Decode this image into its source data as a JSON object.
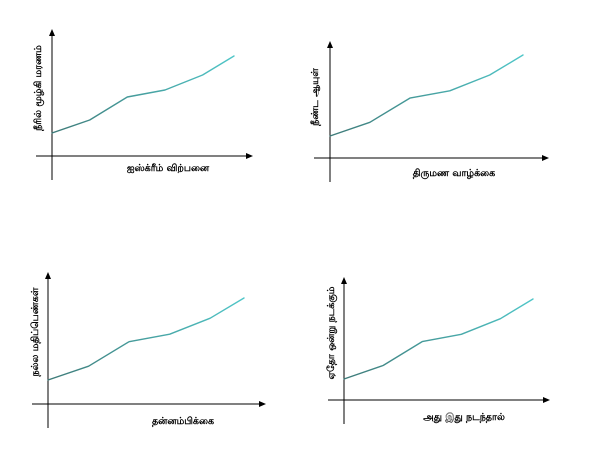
{
  "palette": {
    "axis": "#000000",
    "line_start": "#3e7a78",
    "line_end": "#4fc6c8"
  },
  "icons": {
    "arrowheads": "arrow-icon"
  },
  "chart_data": [
    {
      "type": "line",
      "title": "",
      "xlabel": "ஐஸ்க்ரீம் விற்பனை",
      "ylabel": "நீரில் மூழ்கி மரணம்",
      "grid": false,
      "legend": "none",
      "xlim": [
        0,
        6
      ],
      "ylim": [
        0,
        10
      ],
      "x": [
        0,
        1.2,
        2.4,
        3.6,
        4.8,
        5.8
      ],
      "y": [
        2.3,
        3.6,
        5.9,
        6.6,
        8.1,
        10.0
      ]
    },
    {
      "type": "line",
      "title": "",
      "xlabel": "திருமண வாழ்க்கை",
      "ylabel": "நீண்ட ஆயுள்",
      "grid": false,
      "legend": "none",
      "xlim": [
        0,
        6
      ],
      "ylim": [
        0,
        10
      ],
      "x": [
        0,
        1.2,
        2.4,
        3.6,
        4.8,
        5.8
      ],
      "y": [
        2.3,
        3.6,
        5.9,
        6.6,
        8.1,
        10.0
      ]
    },
    {
      "type": "line",
      "title": "",
      "xlabel": "தன்னம்பிக்கை",
      "ylabel": "நல்ல மதிப்பெண்கள்",
      "grid": false,
      "legend": "none",
      "xlim": [
        0,
        6
      ],
      "ylim": [
        0,
        10
      ],
      "x": [
        0,
        1.2,
        2.4,
        3.6,
        4.8,
        5.8
      ],
      "y": [
        2.3,
        3.6,
        5.9,
        6.6,
        8.1,
        10.0
      ]
    },
    {
      "type": "line",
      "title": "",
      "xlabel": "அது இது நடந்தால்",
      "ylabel": "ஏதோ ஒன்று நடக்கும்",
      "grid": false,
      "legend": "none",
      "xlim": [
        0,
        6
      ],
      "ylim": [
        0,
        10
      ],
      "x": [
        0,
        1.2,
        2.4,
        3.6,
        4.8,
        5.8
      ],
      "y": [
        2.3,
        3.6,
        5.9,
        6.6,
        8.1,
        10.0
      ]
    }
  ]
}
